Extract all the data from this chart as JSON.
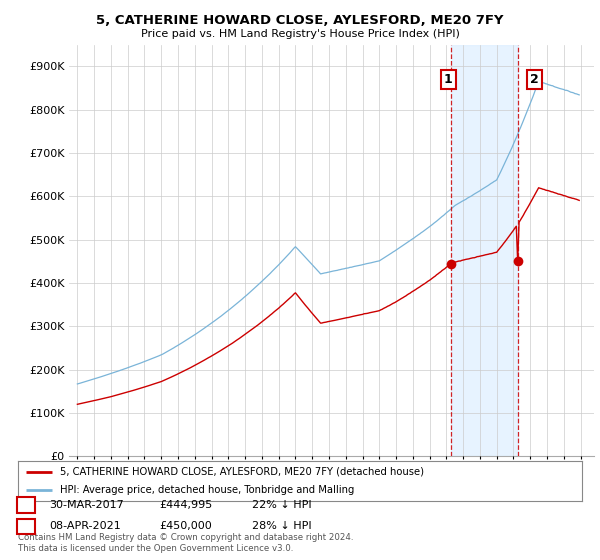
{
  "title": "5, CATHERINE HOWARD CLOSE, AYLESFORD, ME20 7FY",
  "subtitle": "Price paid vs. HM Land Registry's House Price Index (HPI)",
  "legend_line1": "5, CATHERINE HOWARD CLOSE, AYLESFORD, ME20 7FY (detached house)",
  "legend_line2": "HPI: Average price, detached house, Tonbridge and Malling",
  "annotation1_label": "1",
  "annotation1_date": "30-MAR-2017",
  "annotation1_price": "£444,995",
  "annotation1_note": "22% ↓ HPI",
  "annotation2_label": "2",
  "annotation2_date": "08-APR-2021",
  "annotation2_price": "£450,000",
  "annotation2_note": "28% ↓ HPI",
  "footer": "Contains HM Land Registry data © Crown copyright and database right 2024.\nThis data is licensed under the Open Government Licence v3.0.",
  "hpi_color": "#7ab4d8",
  "price_color": "#cc0000",
  "shade_color": "#ddeeff",
  "marker1_year": 2017.25,
  "marker1_value": 444995,
  "marker2_year": 2021.27,
  "marker2_value": 450000,
  "ylim_min": 0,
  "ylim_max": 950000,
  "xlim_min": 1994.5,
  "xlim_max": 2025.8,
  "background_color": "#ffffff",
  "grid_color": "#cccccc"
}
